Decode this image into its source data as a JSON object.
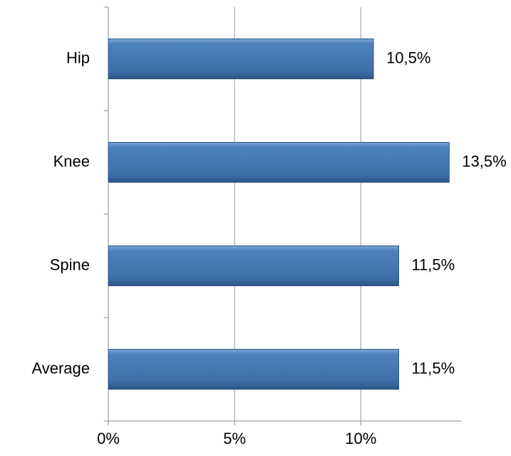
{
  "chart_data": {
    "type": "bar",
    "orientation": "horizontal",
    "categories": [
      "Hip",
      "Knee",
      "Spine",
      "Average"
    ],
    "values": [
      10.5,
      13.5,
      11.5,
      11.5
    ],
    "value_labels": [
      "10,5%",
      "13,5%",
      "11,5%",
      "11,5%"
    ],
    "color": "#4f81bd",
    "xlim": [
      0,
      14
    ],
    "xticks": [
      {
        "value": 0,
        "label": "0%"
      },
      {
        "value": 5,
        "label": "5%"
      },
      {
        "value": 10,
        "label": "10%"
      }
    ],
    "grid": true
  }
}
